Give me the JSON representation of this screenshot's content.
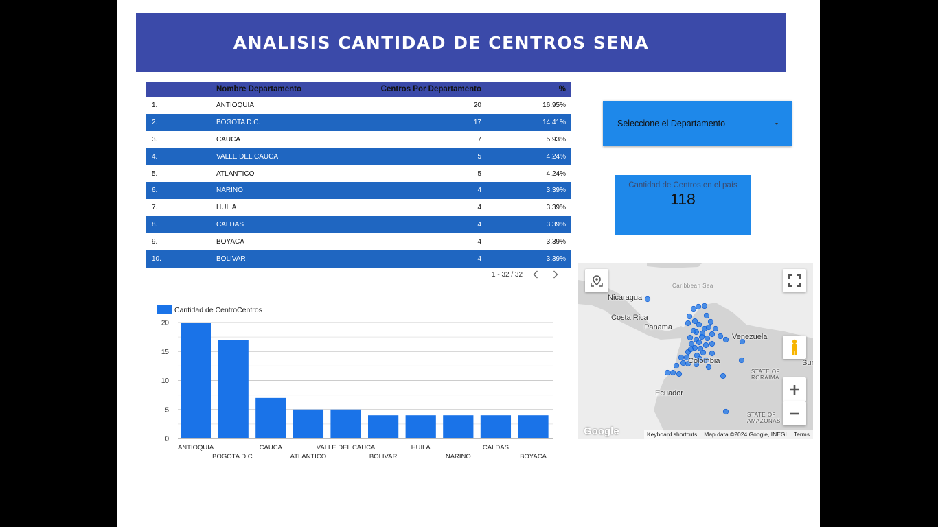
{
  "header": {
    "title": "ANALISIS CANTIDAD DE CENTROS SENA"
  },
  "table": {
    "columns": [
      "Nombre Departamento",
      "Centros Por Departamento",
      "%"
    ],
    "rows": [
      {
        "idx": "1.",
        "name": "ANTIOQUIA",
        "count": "20",
        "pct": "16.95%"
      },
      {
        "idx": "2.",
        "name": "BOGOTA D.C.",
        "count": "17",
        "pct": "14.41%"
      },
      {
        "idx": "3.",
        "name": "CAUCA",
        "count": "7",
        "pct": "5.93%"
      },
      {
        "idx": "4.",
        "name": "VALLE DEL CAUCA",
        "count": "5",
        "pct": "4.24%"
      },
      {
        "idx": "5.",
        "name": "ATLANTICO",
        "count": "5",
        "pct": "4.24%"
      },
      {
        "idx": "6.",
        "name": "NARINO",
        "count": "4",
        "pct": "3.39%"
      },
      {
        "idx": "7.",
        "name": "HUILA",
        "count": "4",
        "pct": "3.39%"
      },
      {
        "idx": "8.",
        "name": "CALDAS",
        "count": "4",
        "pct": "3.39%"
      },
      {
        "idx": "9.",
        "name": "BOYACA",
        "count": "4",
        "pct": "3.39%"
      },
      {
        "idx": "10.",
        "name": "BOLIVAR",
        "count": "4",
        "pct": "3.39%"
      }
    ],
    "pagination": "1 - 32 / 32"
  },
  "selector": {
    "label": "Seleccione el Departamento"
  },
  "scorecard": {
    "label": "Cantidad de Centros en el país",
    "value": "118"
  },
  "map": {
    "labels": {
      "caribbean": "Caribbean Sea",
      "nicaragua": "Nicaragua",
      "costa_rica": "Costa Rica",
      "panama": "Panama",
      "venezuela": "Venezuela",
      "colombia": "Colombia",
      "ecuador": "Ecuador",
      "roraima": "STATE OF RORAIMA",
      "amazonas": "STATE OF AMAZONAS",
      "suriname": "Sur"
    },
    "footer": {
      "logo": "Google",
      "shortcuts": "Keyboard shortcuts",
      "data": "Map data ©2024 Google, INEGI",
      "terms": "Terms"
    },
    "colors": {
      "marker": "#1a73e8",
      "land": "#d4d4d4",
      "sea": "#ededed"
    },
    "icons": [
      "location-pin-icon",
      "fullscreen-icon",
      "pegman-icon",
      "zoom-in-icon",
      "zoom-out-icon"
    ]
  },
  "chart_data": {
    "type": "bar",
    "legend": "Cantidad de CentroCentros",
    "legend_position": "top-left",
    "categories": [
      "ANTIOQUIA",
      "BOGOTA D.C.",
      "CAUCA",
      "ATLANTICO",
      "VALLE DEL CAUCA",
      "BOLIVAR",
      "HUILA",
      "NARINO",
      "CALDAS",
      "BOYACA"
    ],
    "values": [
      20,
      17,
      7,
      5,
      5,
      4,
      4,
      4,
      4,
      4
    ],
    "yticks": [
      0,
      5,
      10,
      15,
      20
    ],
    "ylim": [
      0,
      20
    ],
    "grid": true,
    "bar_color": "#1a73e8"
  },
  "colors": {
    "banner": "#3b4aa9",
    "row_alt": "#1f66c1",
    "accent": "#1e88ea"
  }
}
